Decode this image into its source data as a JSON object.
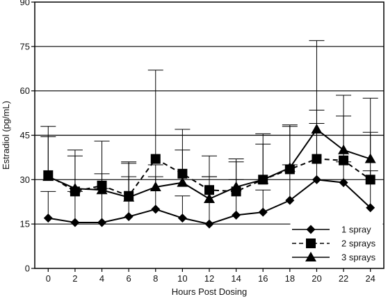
{
  "chart_data": {
    "type": "line",
    "xlabel": "Hours Post Dosing",
    "ylabel": "Estradiol (pg/mL)",
    "x": [
      0,
      2,
      4,
      6,
      8,
      10,
      12,
      14,
      16,
      18,
      20,
      22,
      24
    ],
    "x_ticks": [
      "0",
      "2",
      "4",
      "6",
      "8",
      "10",
      "12",
      "14",
      "16",
      "18",
      "20",
      "22",
      "24"
    ],
    "y_ticks": [
      "0",
      "15",
      "30",
      "45",
      "60",
      "75",
      "90"
    ],
    "xlim": [
      -1,
      25
    ],
    "ylim": [
      0,
      90
    ],
    "grid": "horizontal",
    "legend_position": "bottom-right",
    "series": [
      {
        "name": "1 spray",
        "marker": "diamond",
        "line_style": "solid",
        "values": [
          17,
          15.5,
          15.5,
          17.5,
          20,
          17,
          15,
          18,
          19,
          23,
          30,
          29,
          20.5
        ],
        "error_upper": [
          26,
          26,
          27,
          31,
          31,
          24.5,
          31,
          30,
          26.5,
          35,
          49,
          36,
          33
        ]
      },
      {
        "name": "2 sprays",
        "marker": "square",
        "line_style": "dashed",
        "values": [
          31.5,
          26,
          28,
          24.5,
          37,
          32,
          26.5,
          26,
          30,
          33.5,
          37,
          36.5,
          30
        ],
        "error_upper": [
          44.5,
          38,
          32,
          36,
          67,
          47,
          38,
          37,
          45.5,
          48,
          53.5,
          51.5,
          46
        ]
      },
      {
        "name": "3 sprays",
        "marker": "triangle",
        "line_style": "solid",
        "values": [
          31,
          27,
          26.5,
          24,
          27.5,
          29,
          23.5,
          27.5,
          30,
          34,
          47,
          40,
          37
        ],
        "error_upper": [
          48,
          40,
          43,
          35.5,
          35,
          40,
          31,
          36,
          42,
          48.5,
          77,
          58.5,
          57.5
        ]
      }
    ]
  }
}
